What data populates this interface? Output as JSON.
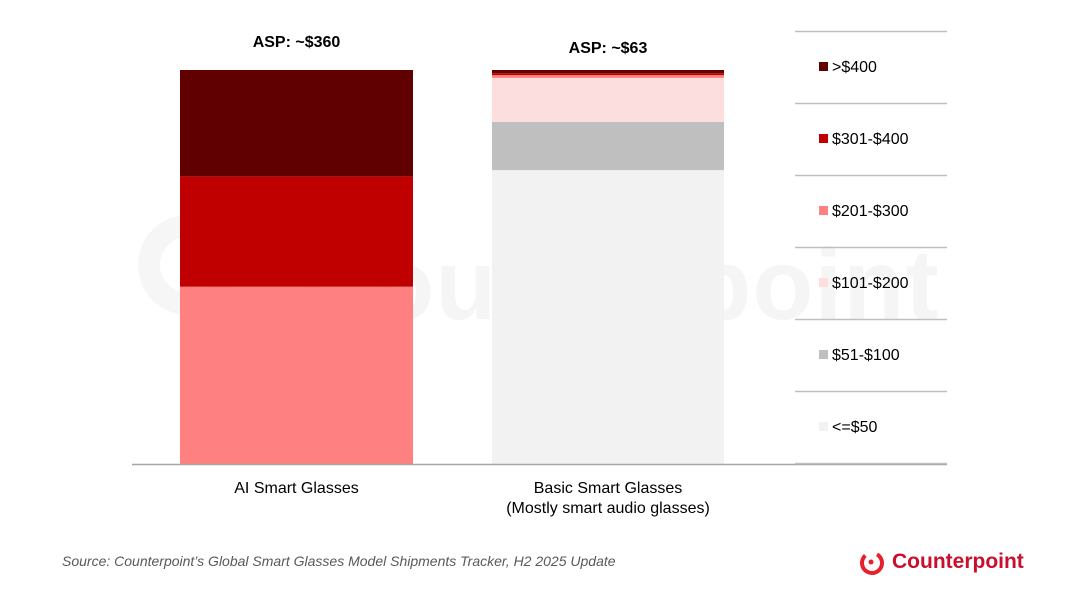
{
  "chart_data": {
    "type": "bar",
    "stacked": true,
    "normalized": true,
    "categories": [
      "AI Smart Glasses",
      "Basic Smart Glasses\n(Mostly smart audio glasses)"
    ],
    "category_lines": [
      [
        "AI Smart Glasses"
      ],
      [
        "Basic Smart Glasses",
        "(Mostly smart audio glasses)"
      ]
    ],
    "annotations": [
      "ASP: ~$360",
      "ASP: ~$63"
    ],
    "series": [
      {
        "name": "<=$50",
        "color": "#f2f2f2",
        "values": [
          0,
          74.6
        ]
      },
      {
        "name": "$51-$100",
        "color": "#bfbfbf",
        "values": [
          0,
          12.2
        ]
      },
      {
        "name": "$101-$200",
        "color": "#fddede",
        "values": [
          0,
          11.2
        ]
      },
      {
        "name": "$201-$300",
        "color": "#ff8080",
        "values": [
          45,
          0.7
        ]
      },
      {
        "name": "$301-$400",
        "color": "#c00000",
        "values": [
          28,
          0.5
        ]
      },
      {
        "name": ">$400",
        "color": "#600000",
        "values": [
          27,
          0.8
        ]
      }
    ],
    "ylim": [
      0,
      100
    ],
    "grid": false,
    "legend_position": "right",
    "legend_order": [
      ">$400",
      "$301-$400",
      "$201-$300",
      "$101-$200",
      "$51-$100",
      "<=$50"
    ]
  },
  "source": "Source: Counterpoint’s Global Smart Glasses Model Shipments Tracker, H2 2025 Update",
  "brand": {
    "name": "Counterpoint",
    "color": "#c8102e"
  },
  "watermark": "Counterpoint"
}
